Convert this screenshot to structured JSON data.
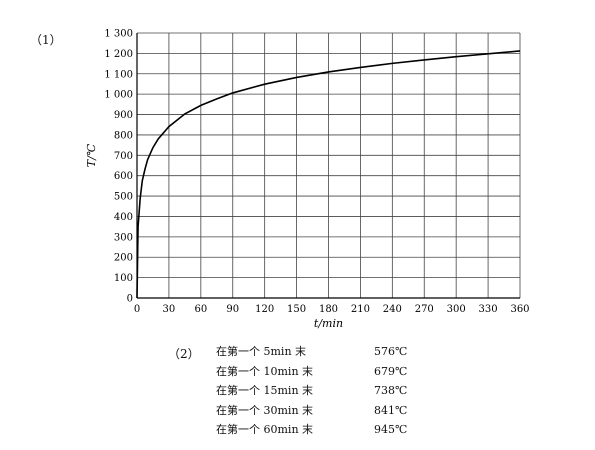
{
  "labels": {
    "part1": "（1）",
    "part2": "（2）"
  },
  "chart_data": {
    "type": "line",
    "xlabel": "t/min",
    "ylabel": "T/℃",
    "xlim": [
      0,
      360
    ],
    "ylim": [
      0,
      1300
    ],
    "xticks": [
      0,
      30,
      60,
      90,
      120,
      150,
      180,
      210,
      240,
      270,
      300,
      330,
      360
    ],
    "yticks": [
      0,
      100,
      200,
      300,
      400,
      500,
      600,
      700,
      800,
      900,
      1000,
      1100,
      1200,
      1300
    ],
    "ytick_labels": [
      "0",
      "100",
      "200",
      "300",
      "400",
      "500",
      "600",
      "700",
      "800",
      "900",
      "1 000",
      "1 100",
      "1 200",
      "1 300"
    ],
    "grid": true,
    "line_color": "#000000",
    "series": [
      {
        "x": [
          0,
          1,
          3,
          5,
          7.5,
          10,
          15,
          20,
          30,
          45,
          60,
          75,
          90,
          120,
          150,
          180,
          210,
          240,
          270,
          300,
          330,
          360
        ],
        "values": [
          0,
          350,
          490,
          576,
          632,
          679,
          738,
          781,
          841,
          903,
          945,
          977,
          1006,
          1049,
          1082,
          1109,
          1131,
          1151,
          1168,
          1184,
          1198,
          1212
        ]
      }
    ]
  },
  "results": [
    {
      "label": "在第一个 5min 末",
      "value": "576℃"
    },
    {
      "label": "在第一个 10min 末",
      "value": "679℃"
    },
    {
      "label": "在第一个 15min 末",
      "value": "738℃"
    },
    {
      "label": "在第一个 30min 末",
      "value": "841℃"
    },
    {
      "label": "在第一个 60min 末",
      "value": "945℃"
    }
  ]
}
